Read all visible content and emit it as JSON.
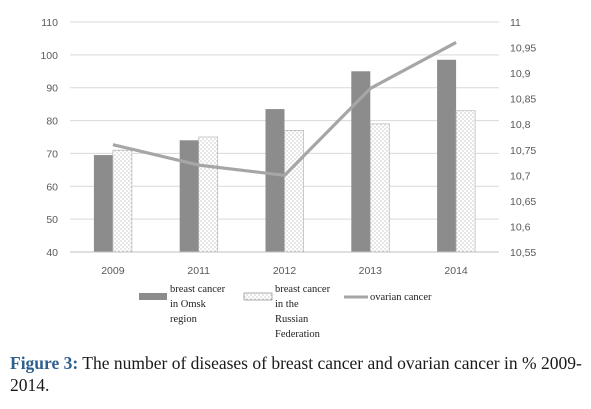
{
  "chart_data": {
    "type": "bar",
    "categories": [
      "2009",
      "2011",
      "2012",
      "2013",
      "2014"
    ],
    "series": [
      {
        "name": "breast cancer in Omsk region",
        "axis": "left",
        "kind": "bar",
        "color": "#8c8c8c",
        "values": [
          69.5,
          74,
          83.5,
          95,
          98.5
        ]
      },
      {
        "name": "breast cancer in the Russian Federation",
        "axis": "left",
        "kind": "bar",
        "pattern": "dotted",
        "values": [
          71,
          75,
          77,
          79,
          83
        ]
      },
      {
        "name": "ovarian cancer",
        "axis": "right",
        "kind": "line",
        "color": "#a6a6a6",
        "values": [
          10.76,
          10.72,
          10.7,
          10.87,
          10.96
        ]
      }
    ],
    "y_left": {
      "lim": [
        40,
        110
      ],
      "ticks": [
        "40",
        "50",
        "60",
        "70",
        "80",
        "90",
        "100",
        "110"
      ]
    },
    "y_right": {
      "lim": [
        10.55,
        11
      ],
      "ticks": [
        "10,55",
        "10,6",
        "10,65",
        "10,7",
        "10,75",
        "10,8",
        "10,85",
        "10,9",
        "10,95",
        "11"
      ]
    },
    "grid": true,
    "legend_position": "bottom",
    "legend_lines": [
      [
        "breast cancer",
        "in Omsk",
        "region"
      ],
      [
        "breast cancer",
        "in the",
        "Russian",
        "Federation"
      ],
      [
        "ovarian cancer"
      ]
    ]
  },
  "caption": {
    "label": "Figure 3:",
    "text": " The number of diseases of breast cancer and ovarian cancer in % 2009-2014."
  }
}
